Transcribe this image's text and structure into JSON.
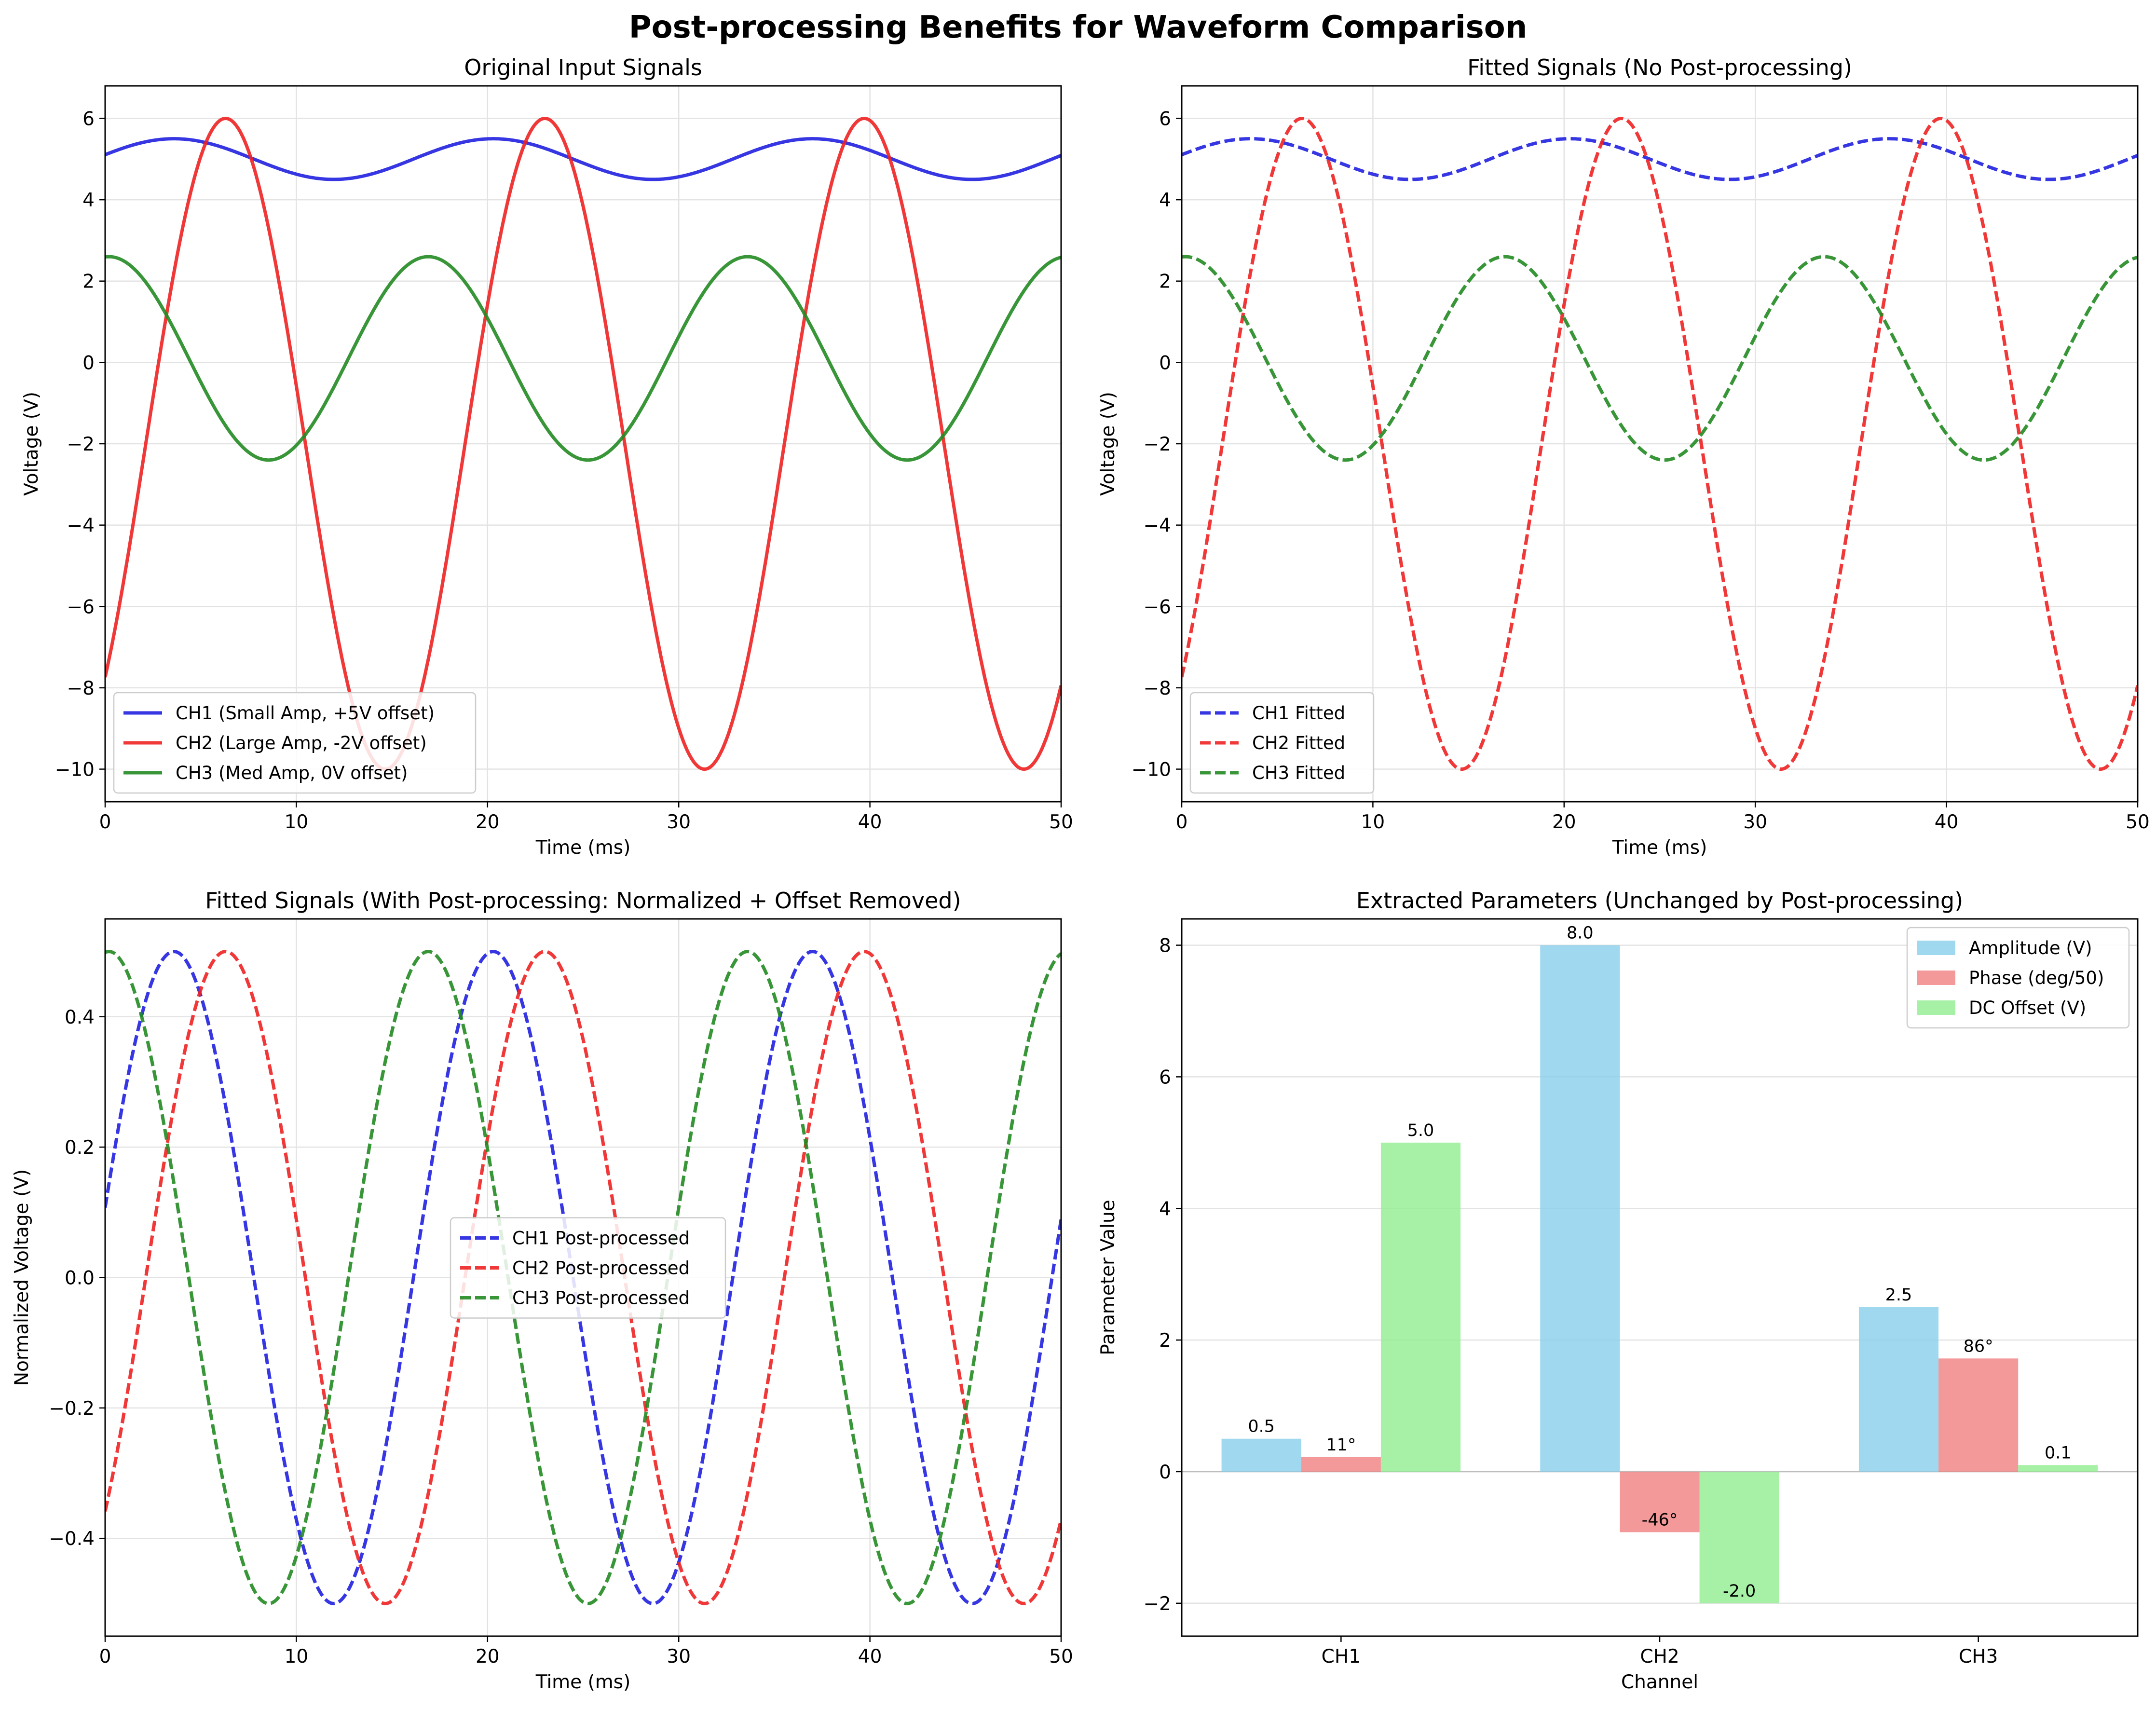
{
  "title": "Post-processing Benefits for Waveform Comparison",
  "chart_data": [
    {
      "type": "line",
      "title": "Original Input Signals",
      "xlabel": "Time (ms)",
      "ylabel": "Voltage (V)",
      "xlim": [
        0,
        50
      ],
      "ylim": [
        -10.8,
        6.8
      ],
      "xticks": [
        0,
        10,
        20,
        30,
        40,
        50
      ],
      "yticks": [
        -10,
        -8,
        -6,
        -4,
        -2,
        0,
        2,
        4,
        6
      ],
      "grid": true,
      "legend": "lower-left",
      "line_style": "solid",
      "series": [
        {
          "name": "CH1 (Small Amp, +5V offset)",
          "color": "#2020e0",
          "amplitude": 0.5,
          "offset": 5.0,
          "period_ms": 16.7,
          "peak_ms": 3.6
        },
        {
          "name": "CH2 (Large Amp, -2V offset)",
          "color": "#ee2222",
          "amplitude": 8.0,
          "offset": -2.0,
          "period_ms": 16.7,
          "peak_ms": 6.3
        },
        {
          "name": "CH3 (Med Amp, 0V offset)",
          "color": "#228b22",
          "amplitude": 2.5,
          "offset": 0.1,
          "period_ms": 16.7,
          "peak_ms": 0.2
        }
      ]
    },
    {
      "type": "line",
      "title": "Fitted Signals (No Post-processing)",
      "xlabel": "Time (ms)",
      "ylabel": "Voltage (V)",
      "xlim": [
        0,
        50
      ],
      "ylim": [
        -10.8,
        6.8
      ],
      "xticks": [
        0,
        10,
        20,
        30,
        40,
        50
      ],
      "yticks": [
        -10,
        -8,
        -6,
        -4,
        -2,
        0,
        2,
        4,
        6
      ],
      "grid": true,
      "legend": "lower-left",
      "line_style": "dashed",
      "series": [
        {
          "name": "CH1 Fitted",
          "color": "#2020e0",
          "amplitude": 0.5,
          "offset": 5.0,
          "period_ms": 16.7,
          "peak_ms": 3.6
        },
        {
          "name": "CH2 Fitted",
          "color": "#ee2222",
          "amplitude": 8.0,
          "offset": -2.0,
          "period_ms": 16.7,
          "peak_ms": 6.3
        },
        {
          "name": "CH3 Fitted",
          "color": "#228b22",
          "amplitude": 2.5,
          "offset": 0.1,
          "period_ms": 16.7,
          "peak_ms": 0.2
        }
      ]
    },
    {
      "type": "line",
      "title": "Fitted Signals (With Post-processing: Normalized + Offset Removed)",
      "xlabel": "Time (ms)",
      "ylabel": "Normalized Voltage (V)",
      "xlim": [
        0,
        50
      ],
      "ylim": [
        -0.55,
        0.55
      ],
      "xticks": [
        0,
        10,
        20,
        30,
        40,
        50
      ],
      "yticks": [
        -0.4,
        -0.2,
        0.0,
        0.2,
        0.4
      ],
      "grid": true,
      "legend": "center",
      "line_style": "dashed",
      "series": [
        {
          "name": "CH1 Post-processed",
          "color": "#2020e0",
          "amplitude": 0.5,
          "offset": 0.0,
          "period_ms": 16.7,
          "peak_ms": 3.6
        },
        {
          "name": "CH2 Post-processed",
          "color": "#ee2222",
          "amplitude": 0.5,
          "offset": 0.0,
          "period_ms": 16.7,
          "peak_ms": 6.3
        },
        {
          "name": "CH3 Post-processed",
          "color": "#228b22",
          "amplitude": 0.5,
          "offset": 0.0,
          "period_ms": 16.7,
          "peak_ms": 0.2
        }
      ]
    },
    {
      "type": "bar",
      "title": "Extracted Parameters (Unchanged by Post-processing)",
      "xlabel": "Channel",
      "ylabel": "Parameter Value",
      "categories": [
        "CH1",
        "CH2",
        "CH3"
      ],
      "ylim": [
        -2.5,
        8.4
      ],
      "yticks": [
        -2,
        0,
        2,
        4,
        6,
        8
      ],
      "grid": true,
      "legend": "upper-right",
      "series": [
        {
          "name": "Amplitude (V)",
          "color": "#87ceeb",
          "values": [
            0.5,
            8.0,
            2.5
          ],
          "labels": [
            "0.5",
            "8.0",
            "2.5"
          ]
        },
        {
          "name": "Phase (deg/50)",
          "color": "#f08080",
          "values": [
            0.22,
            -0.92,
            1.72
          ],
          "labels": [
            "11°",
            "-46°",
            "86°"
          ]
        },
        {
          "name": "DC Offset (V)",
          "color": "#90ee90",
          "values": [
            5.0,
            -2.0,
            0.1
          ],
          "labels": [
            "5.0",
            "-2.0",
            "0.1"
          ]
        }
      ]
    }
  ]
}
